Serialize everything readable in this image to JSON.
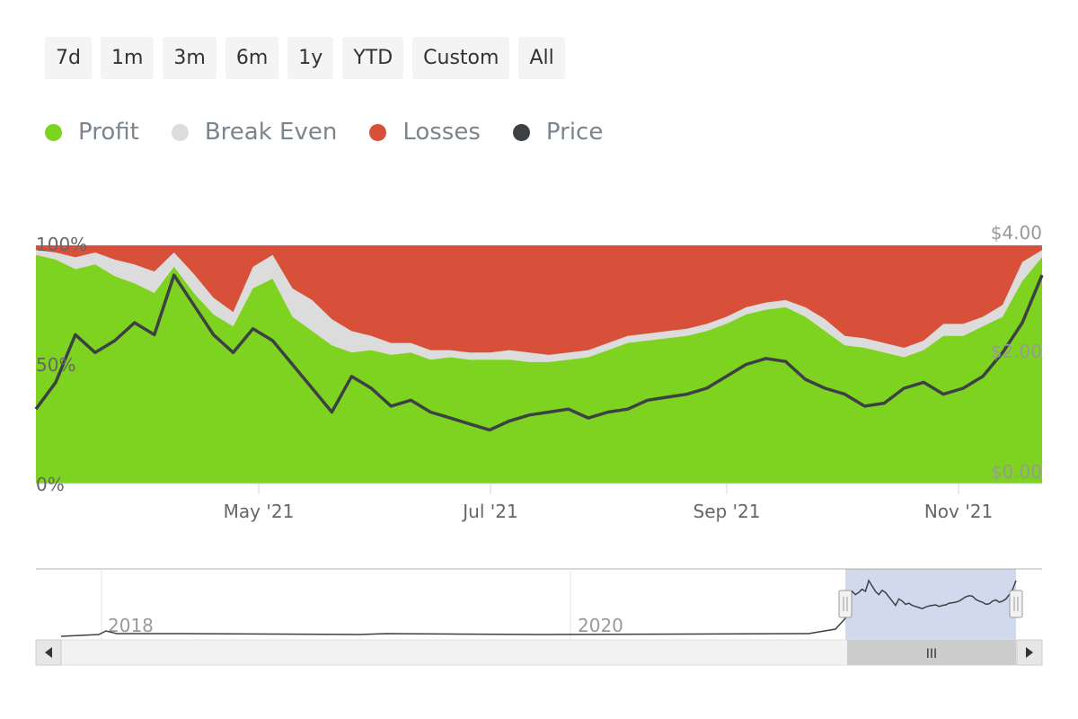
{
  "range_selector": {
    "buttons": [
      "7d",
      "1m",
      "3m",
      "6m",
      "1y",
      "YTD",
      "Custom",
      "All"
    ]
  },
  "legend": [
    {
      "label": "Profit",
      "color": "#7ed321"
    },
    {
      "label": "Break Even",
      "color": "#dcdcdc"
    },
    {
      "label": "Losses",
      "color": "#d9503a"
    },
    {
      "label": "Price",
      "color": "#3d4145"
    }
  ],
  "navigator": {
    "labels": [
      "2018",
      "2020"
    ],
    "scrollbar_grip": "III"
  },
  "chart_data": {
    "type": "area",
    "title": "",
    "x": [
      "2021-03-01",
      "2021-03-05",
      "2021-03-10",
      "2021-03-15",
      "2021-03-20",
      "2021-03-25",
      "2021-03-31",
      "2021-04-05",
      "2021-04-10",
      "2021-04-15",
      "2021-04-20",
      "2021-04-25",
      "2021-04-30",
      "2021-05-05",
      "2021-05-10",
      "2021-05-15",
      "2021-05-20",
      "2021-05-25",
      "2021-05-31",
      "2021-06-05",
      "2021-06-10",
      "2021-06-15",
      "2021-06-20",
      "2021-06-25",
      "2021-06-30",
      "2021-07-05",
      "2021-07-10",
      "2021-07-15",
      "2021-07-20",
      "2021-07-25",
      "2021-07-31",
      "2021-08-05",
      "2021-08-10",
      "2021-08-15",
      "2021-08-20",
      "2021-08-25",
      "2021-08-31",
      "2021-09-05",
      "2021-09-10",
      "2021-09-15",
      "2021-09-20",
      "2021-09-25",
      "2021-09-30",
      "2021-10-05",
      "2021-10-10",
      "2021-10-15",
      "2021-10-20",
      "2021-10-25",
      "2021-10-31",
      "2021-11-05",
      "2021-11-10",
      "2021-11-15"
    ],
    "x_ticks": [
      "May '21",
      "Jul '21",
      "Sep '21",
      "Nov '21"
    ],
    "y_left": {
      "ticks": [
        "0%",
        "50%",
        "100%"
      ],
      "range": [
        0,
        100
      ]
    },
    "y_right": {
      "ticks": [
        "$0.00",
        "$2.00",
        "$4.00"
      ],
      "range": [
        0,
        4
      ]
    },
    "series": [
      {
        "name": "Profit",
        "values": [
          96,
          94,
          90,
          92,
          87,
          84,
          80,
          91,
          80,
          71,
          66,
          82,
          86,
          70,
          64,
          58,
          55,
          56,
          54,
          55,
          52,
          53,
          52,
          52,
          52,
          51,
          51,
          52,
          53,
          56,
          59,
          60,
          61,
          62,
          64,
          67,
          71,
          73,
          74,
          70,
          64,
          58,
          57,
          55,
          53,
          56,
          62,
          62,
          66,
          70,
          85,
          95
        ]
      },
      {
        "name": "Break Even",
        "values": [
          2,
          3,
          5,
          5,
          7,
          8,
          9,
          6,
          8,
          7,
          6,
          9,
          10,
          12,
          13,
          11,
          9,
          6,
          5,
          4,
          4,
          3,
          3,
          3,
          4,
          4,
          3,
          3,
          3,
          3,
          3,
          3,
          3,
          3,
          3,
          3,
          3,
          3,
          3,
          4,
          5,
          4,
          4,
          4,
          4,
          4,
          5,
          5,
          4,
          5,
          8,
          3
        ]
      },
      {
        "name": "Losses",
        "values": [
          2,
          3,
          5,
          3,
          6,
          8,
          11,
          3,
          12,
          22,
          28,
          9,
          4,
          18,
          23,
          31,
          36,
          38,
          41,
          41,
          44,
          44,
          45,
          45,
          44,
          45,
          46,
          45,
          44,
          41,
          38,
          37,
          36,
          35,
          33,
          30,
          26,
          24,
          23,
          26,
          31,
          38,
          39,
          41,
          43,
          40,
          33,
          33,
          30,
          25,
          7,
          2
        ]
      },
      {
        "name": "Price",
        "values": [
          1.25,
          1.7,
          2.5,
          2.2,
          2.4,
          2.7,
          2.5,
          3.5,
          3.0,
          2.5,
          2.2,
          2.6,
          2.4,
          2.0,
          1.6,
          1.2,
          1.8,
          1.6,
          1.3,
          1.4,
          1.2,
          1.1,
          1.0,
          0.9,
          1.05,
          1.15,
          1.2,
          1.25,
          1.1,
          1.2,
          1.25,
          1.4,
          1.45,
          1.5,
          1.6,
          1.8,
          2.0,
          2.1,
          2.05,
          1.75,
          1.6,
          1.5,
          1.3,
          1.35,
          1.6,
          1.7,
          1.5,
          1.6,
          1.8,
          2.2,
          2.7,
          3.5
        ]
      }
    ]
  }
}
